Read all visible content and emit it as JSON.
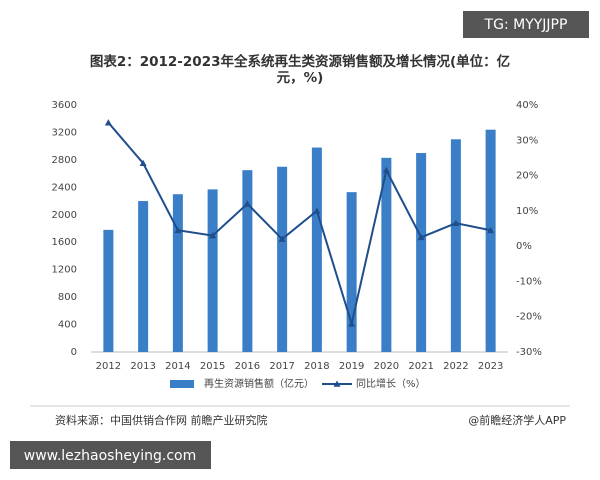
{
  "watermark_top": "TG: MYYJJPP",
  "watermark_bottom": "www.lezhaosheying.com",
  "footer": {
    "source": "资料来源：中国供销合作网 前瞻产业研究院",
    "credit": "@前瞻经济学人APP"
  },
  "chart_data": {
    "type": "bar",
    "title": "图表2：2012-2023年全系统再生类资源销售额及增长情况(单位：亿",
    "title_line2": "元，%)",
    "categories": [
      "2012",
      "2013",
      "2014",
      "2015",
      "2016",
      "2017",
      "2018",
      "2019",
      "2020",
      "2021",
      "2022",
      "2023"
    ],
    "series": [
      {
        "name": "再生资源销售额（亿元）",
        "type": "bar",
        "color": "#3b7ec8",
        "values": [
          1780,
          2200,
          2300,
          2370,
          2650,
          2700,
          2980,
          2330,
          2830,
          2900,
          3100,
          3240
        ]
      },
      {
        "name": "同比增长（%）",
        "type": "line",
        "axis": "y2",
        "color": "#1f4e8c",
        "values": [
          35,
          23.5,
          4.5,
          3,
          12,
          2,
          10,
          -22,
          21.5,
          2.5,
          6.5,
          4.5
        ]
      }
    ],
    "ylim": [
      0,
      3600
    ],
    "yticks": [
      0,
      400,
      800,
      1200,
      1600,
      2000,
      2400,
      2800,
      3200,
      3600
    ],
    "y2lim": [
      -30,
      40
    ],
    "y2ticks": [
      {
        "value": -30,
        "label": "-30%"
      },
      {
        "value": -20,
        "label": "-20%"
      },
      {
        "value": -10,
        "label": "-10%"
      },
      {
        "value": 0,
        "label": "0%"
      },
      {
        "value": 10,
        "label": "10%"
      },
      {
        "value": 20,
        "label": "20%"
      },
      {
        "value": 30,
        "label": "30%"
      },
      {
        "value": 40,
        "label": "40%"
      }
    ],
    "grid": false,
    "legend": "bottom"
  }
}
